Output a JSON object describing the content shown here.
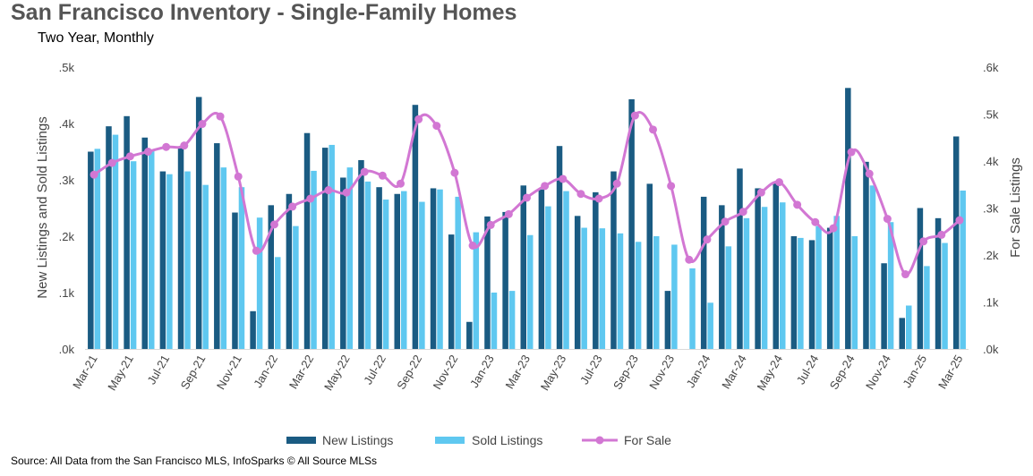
{
  "title": "San Francisco Inventory - Single-Family Homes",
  "subtitle": "Two Year, Monthly",
  "source": "Source: All Data from the San Francisco MLS, InfoSparks © All Source MLSs",
  "colors": {
    "new": "#1a5b82",
    "sold": "#5fc8f0",
    "forsale": "#d277d3",
    "grid": "#d9d9d9"
  },
  "chart_data": {
    "type": "bar",
    "title": "San Francisco Inventory - Single-Family Homes",
    "subtitle": "Two Year, Monthly",
    "ylabel": "New Listings and Sold Listings",
    "y2label": "For Sale Listings",
    "ylim": [
      0,
      0.5
    ],
    "y2lim": [
      0,
      0.6
    ],
    "yticks": [
      ".0k",
      ".1k",
      ".2k",
      ".3k",
      ".4k",
      ".5k"
    ],
    "y2ticks": [
      ".0k",
      ".1k",
      ".2k",
      ".3k",
      ".4k",
      ".5k",
      ".6k"
    ],
    "x_tick_labels": [
      "Mar-21",
      "May-21",
      "Jul-21",
      "Sep-21",
      "Nov-21",
      "Jan-22",
      "Mar-22",
      "May-22",
      "Jul-22",
      "Sep-22",
      "Nov-22",
      "Jan-23",
      "Mar-23",
      "May-23",
      "Jul-23",
      "Sep-23",
      "Nov-23",
      "Jan-24",
      "Mar-24",
      "May-24",
      "Jul-24",
      "Sep-24",
      "Nov-24",
      "Jan-25",
      "Mar-25"
    ],
    "categories": [
      "Mar-21",
      "Apr-21",
      "May-21",
      "Jun-21",
      "Jul-21",
      "Aug-21",
      "Sep-21",
      "Oct-21",
      "Nov-21",
      "Dec-21",
      "Jan-22",
      "Feb-22",
      "Mar-22",
      "Apr-22",
      "May-22",
      "Jun-22",
      "Jul-22",
      "Aug-22",
      "Sep-22",
      "Oct-22",
      "Nov-22",
      "Dec-22",
      "Jan-23",
      "Feb-23",
      "Mar-23",
      "Apr-23",
      "May-23",
      "Jun-23",
      "Jul-23",
      "Aug-23",
      "Sep-23",
      "Oct-23",
      "Nov-23",
      "Dec-23",
      "Jan-24",
      "Feb-24",
      "Mar-24",
      "Apr-24",
      "May-24",
      "Jun-24",
      "Jul-24",
      "Aug-24",
      "Sep-24",
      "Oct-24",
      "Nov-24",
      "Dec-24",
      "Jan-25",
      "Feb-25",
      "Mar-25"
    ],
    "series": [
      {
        "name": "New Listings",
        "type": "bar",
        "axis": "left",
        "values": [
          0.35,
          0.395,
          0.413,
          0.375,
          0.315,
          0.357,
          0.447,
          0.365,
          0.242,
          0.067,
          0.255,
          0.275,
          0.383,
          0.357,
          0.304,
          0.335,
          0.287,
          0.275,
          0.433,
          0.285,
          0.203,
          0.048,
          0.235,
          0.243,
          0.29,
          0.283,
          0.36,
          0.236,
          0.278,
          0.315,
          0.443,
          0.293,
          0.103,
          0.0,
          0.27,
          0.255,
          0.32,
          0.285,
          0.295,
          0.2,
          0.193,
          0.215,
          0.463,
          0.332,
          0.152,
          0.055,
          0.25,
          0.232,
          0.377
        ]
      },
      {
        "name": "Sold Listings",
        "type": "bar",
        "axis": "left",
        "values": [
          0.355,
          0.38,
          0.333,
          0.351,
          0.31,
          0.315,
          0.291,
          0.322,
          0.287,
          0.233,
          0.163,
          0.218,
          0.316,
          0.362,
          0.322,
          0.297,
          0.265,
          0.28,
          0.261,
          0.283,
          0.27,
          0.207,
          0.1,
          0.103,
          0.202,
          0.253,
          0.28,
          0.215,
          0.214,
          0.205,
          0.19,
          0.2,
          0.185,
          0.143,
          0.082,
          0.182,
          0.232,
          0.252,
          0.26,
          0.197,
          0.218,
          0.236,
          0.2,
          0.29,
          0.225,
          0.077,
          0.147,
          0.188,
          0.281
        ]
      },
      {
        "name": "For Sale",
        "type": "line",
        "axis": "right",
        "values": [
          0.371,
          0.396,
          0.41,
          0.42,
          0.43,
          0.433,
          0.479,
          0.495,
          0.367,
          0.209,
          0.265,
          0.303,
          0.32,
          0.338,
          0.333,
          0.377,
          0.369,
          0.352,
          0.489,
          0.475,
          0.375,
          0.22,
          0.264,
          0.287,
          0.322,
          0.347,
          0.362,
          0.33,
          0.32,
          0.352,
          0.497,
          0.467,
          0.347,
          0.19,
          0.233,
          0.271,
          0.292,
          0.333,
          0.355,
          0.307,
          0.27,
          0.257,
          0.419,
          0.373,
          0.277,
          0.159,
          0.229,
          0.243,
          0.274
        ]
      }
    ],
    "legend": [
      "New Listings",
      "Sold Listings",
      "For Sale"
    ],
    "legend_position": "bottom",
    "grid": false
  }
}
